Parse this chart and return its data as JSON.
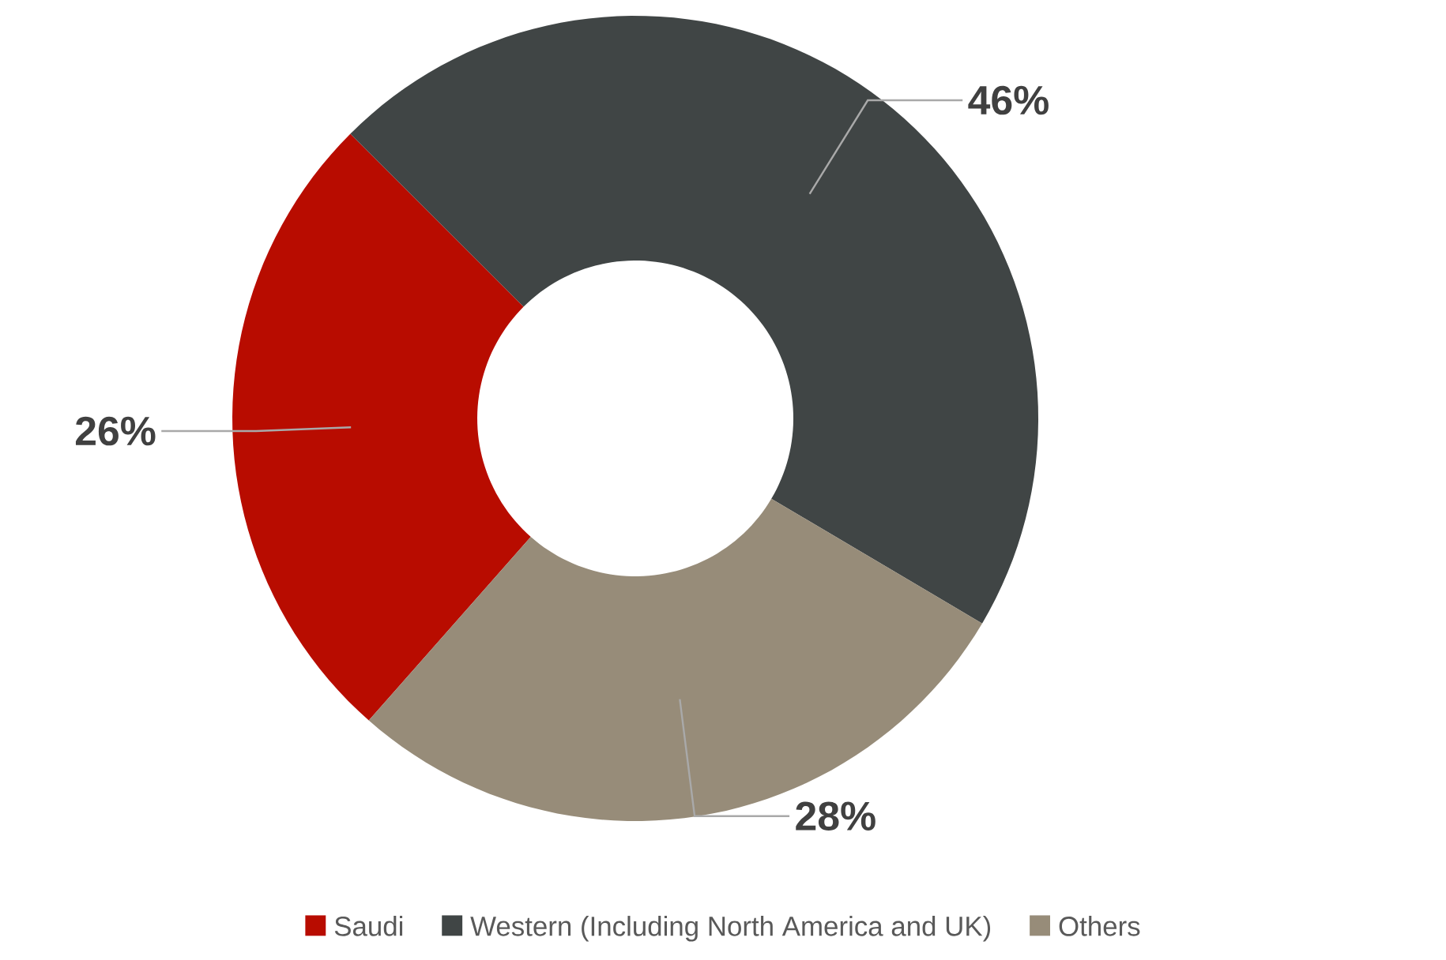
{
  "chart_data": {
    "type": "donut",
    "categories": [
      "Saudi",
      "Western (Including North America and UK)",
      "Others"
    ],
    "values": [
      26,
      46,
      28
    ],
    "colors": [
      "#b80c00",
      "#404545",
      "#978c79"
    ],
    "value_labels": [
      "26%",
      "46%",
      "28%"
    ],
    "legend": "bottom"
  }
}
